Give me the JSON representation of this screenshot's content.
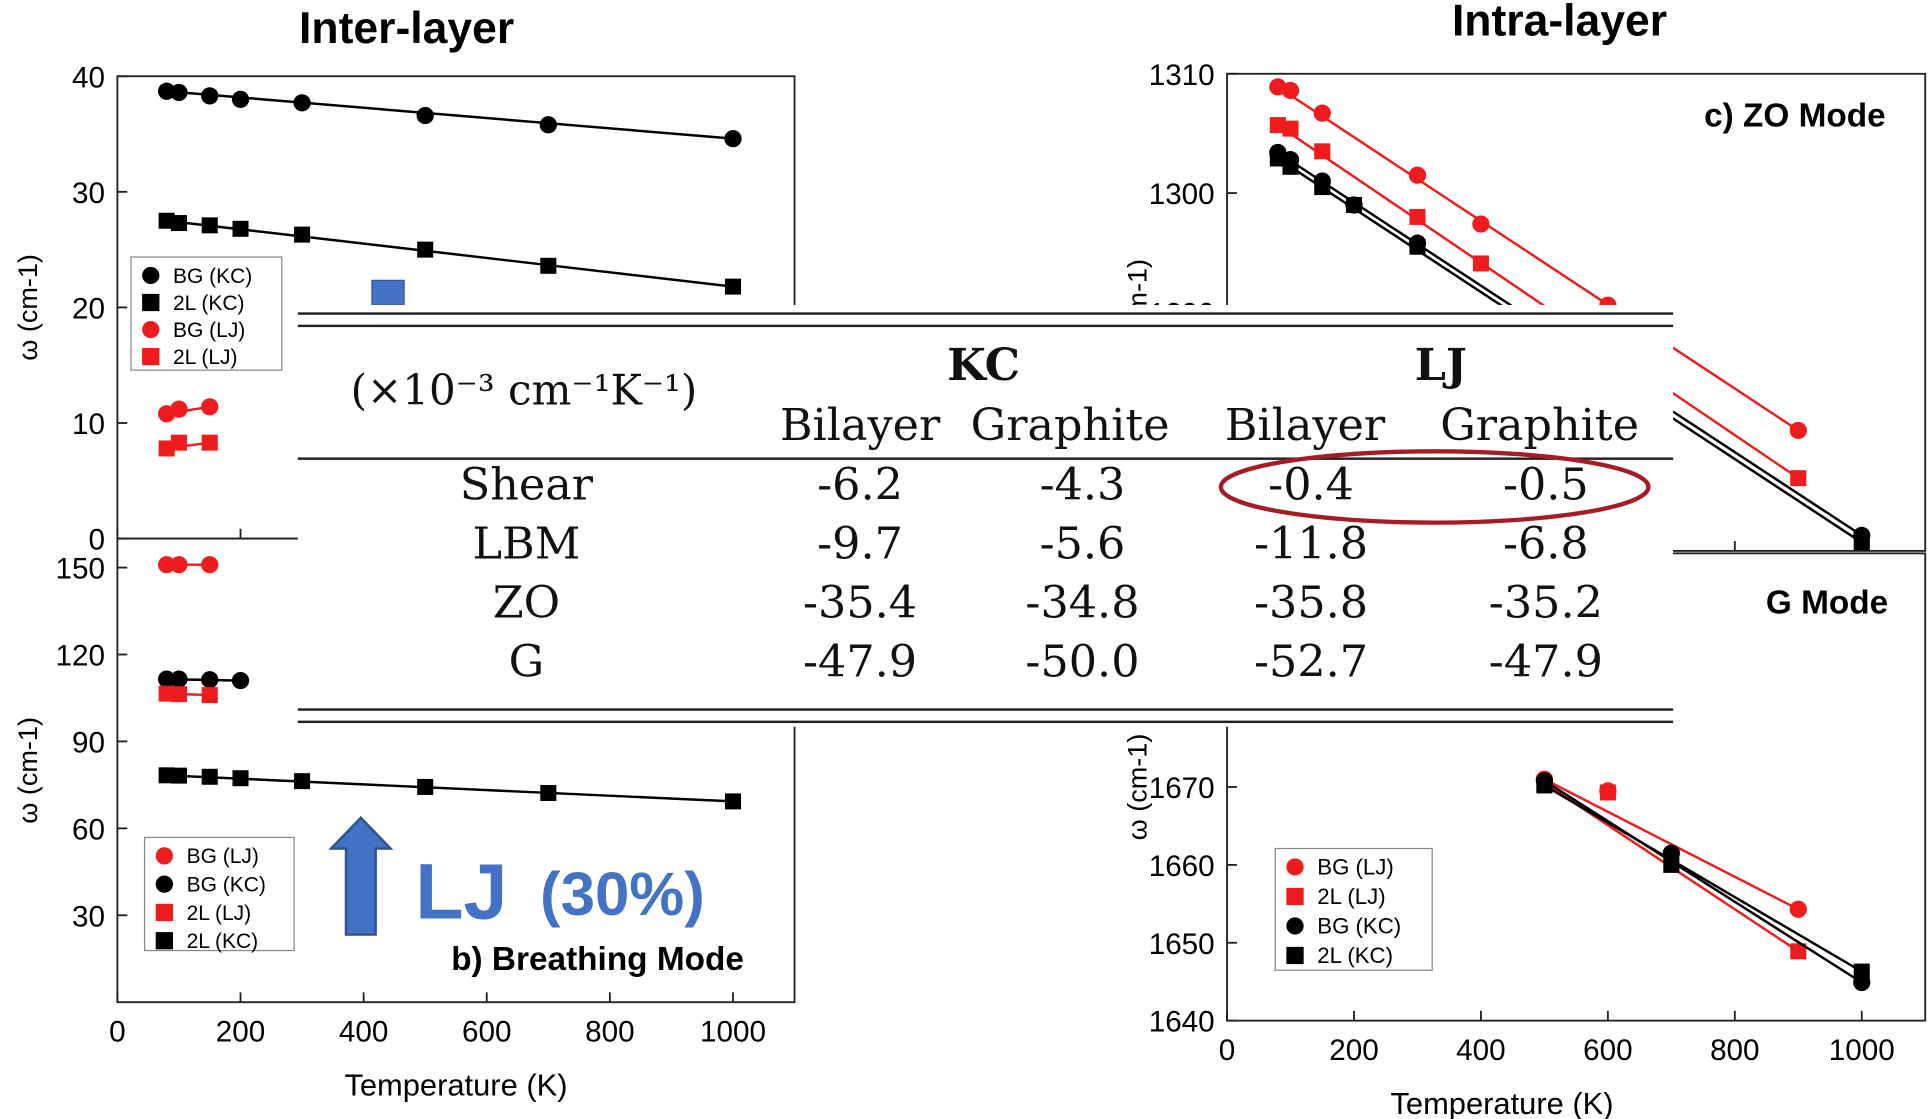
{
  "headings": {
    "left": "Inter-layer",
    "right": "Intra-layer"
  },
  "annotation": {
    "big": "LJ",
    "pct": "(30%)"
  },
  "colors": {
    "kc": "#000000",
    "lj": "#ee1c1c",
    "accent": "#4472C4",
    "oval": "#a51c24"
  },
  "table": {
    "unit": "(×10⁻³ cm⁻¹K⁻¹)",
    "groups": [
      "KC",
      "LJ"
    ],
    "columns": [
      "Bilayer",
      "Graphite",
      "Bilayer",
      "Graphite"
    ],
    "rows": [
      {
        "mode": "Shear",
        "values": [
          "-6.2",
          "-4.3",
          "-0.4",
          "-0.5"
        ]
      },
      {
        "mode": "LBM",
        "values": [
          "-9.7",
          "-5.6",
          "-11.8",
          "-6.8"
        ]
      },
      {
        "mode": "ZO",
        "values": [
          "-35.4",
          "-34.8",
          "-35.8",
          "-35.2"
        ]
      },
      {
        "mode": "G",
        "values": [
          "-47.9",
          "-50.0",
          "-52.7",
          "-47.9"
        ]
      }
    ]
  },
  "chart_data": [
    {
      "type": "scatter",
      "panel": "a",
      "title": "",
      "xlabel": "Temperature (K)",
      "ylabel": "ω (cm-1)",
      "xlim": [
        0,
        1100
      ],
      "ylim": [
        0,
        40
      ],
      "yticks": [
        "0",
        "10",
        "20",
        "30",
        "40"
      ],
      "legend": [
        "BG (KC)",
        "2L (KC)",
        "BG (LJ)",
        "2L (LJ)"
      ],
      "series": [
        {
          "name": "BG (KC)",
          "x": [
            80,
            100,
            150,
            200,
            300,
            500,
            700,
            1000
          ],
          "y": [
            38.7,
            38.6,
            38.3,
            38.0,
            37.7,
            36.6,
            35.8,
            34.6
          ]
        },
        {
          "name": "2L (KC)",
          "x": [
            80,
            100,
            150,
            200,
            300,
            500,
            700,
            1000
          ],
          "y": [
            27.5,
            27.3,
            27.1,
            26.8,
            26.3,
            25.0,
            23.6,
            21.8
          ]
        },
        {
          "name": "BG (LJ)",
          "x": [
            80,
            100,
            150
          ],
          "y": [
            10.8,
            11.2,
            11.4
          ]
        },
        {
          "name": "2L (LJ)",
          "x": [
            80,
            100,
            150
          ],
          "y": [
            7.8,
            8.3,
            8.3
          ]
        }
      ]
    },
    {
      "type": "scatter",
      "panel": "b",
      "title": "b) Breathing Mode",
      "xlabel": "Temperature (K)",
      "ylabel": "ω (cm-1)",
      "xlim": [
        0,
        1100
      ],
      "ylim": [
        0,
        160
      ],
      "yticks": [
        "30",
        "60",
        "90",
        "120",
        "150"
      ],
      "xticks": [
        "0",
        "200",
        "400",
        "600",
        "800",
        "1000"
      ],
      "legend": [
        "BG (LJ)",
        "BG (KC)",
        "2L (LJ)",
        "2L (KC)"
      ],
      "series": [
        {
          "name": "BG (LJ)",
          "x": [
            80,
            100,
            150
          ],
          "y": [
            151,
            151,
            151
          ]
        },
        {
          "name": "BG (KC)",
          "x": [
            80,
            100,
            150,
            200
          ],
          "y": [
            111.5,
            111.5,
            111.3,
            111
          ]
        },
        {
          "name": "2L (LJ)",
          "x": [
            80,
            100,
            150
          ],
          "y": [
            106.5,
            106.3,
            106
          ]
        },
        {
          "name": "2L (KC)",
          "x": [
            80,
            100,
            150,
            200,
            300,
            500,
            700,
            1000
          ],
          "y": [
            78.3,
            78.2,
            77.8,
            77.3,
            76.3,
            74.3,
            72.2,
            69.3
          ]
        }
      ]
    },
    {
      "type": "scatter",
      "panel": "c",
      "title": "c) ZO Mode",
      "xlabel": "",
      "ylabel": "ω (cm-1)",
      "xlim": [
        0,
        1100
      ],
      "ylim": [
        1270,
        1310
      ],
      "yticks": [
        "1290",
        "1300",
        "1310"
      ],
      "legend": [],
      "series": [
        {
          "name": "BG (LJ)",
          "x": [
            80,
            100,
            150,
            300,
            400,
            600,
            900
          ],
          "y": [
            1308.9,
            1308.6,
            1306.7,
            1301.5,
            1297.4,
            1290.6,
            1280.1
          ]
        },
        {
          "name": "2L (LJ)",
          "x": [
            80,
            100,
            150,
            300,
            400,
            600,
            900
          ],
          "y": [
            1305.7,
            1305.4,
            1303.5,
            1298.0,
            1294.1,
            1288.1,
            1276.1
          ]
        },
        {
          "name": "BG (KC)",
          "x": [
            80,
            100,
            150,
            200,
            300,
            500,
            1000
          ],
          "y": [
            1303.4,
            1302.8,
            1301.0,
            1299.0,
            1295.8,
            1288.7,
            1271.3
          ]
        },
        {
          "name": "2L (KC)",
          "x": [
            80,
            100,
            150,
            200,
            300,
            500,
            1000
          ],
          "y": [
            1302.9,
            1302.2,
            1300.5,
            1299.0,
            1295.5,
            1288.3,
            1270.7
          ]
        }
      ]
    },
    {
      "type": "scatter",
      "panel": "d",
      "title": "G Mode",
      "xlabel": "Temperature (K)",
      "ylabel": "ω (cm-1)",
      "xlim": [
        0,
        1100
      ],
      "ylim": [
        1640,
        1700
      ],
      "yticks": [
        "1640",
        "1650",
        "1660",
        "1670"
      ],
      "xticks": [
        "0",
        "200",
        "400",
        "600",
        "800",
        "1000"
      ],
      "legend": [
        "BG (LJ)",
        "2L (LJ)",
        "BG (KC)",
        "2L (KC)"
      ],
      "series": [
        {
          "name": "BG (LJ)",
          "x": [
            500,
            600,
            900
          ],
          "y": [
            1671.0,
            1669.5,
            1654.3
          ]
        },
        {
          "name": "2L (LJ)",
          "x": [
            500,
            600,
            900
          ],
          "y": [
            1670.5,
            1669.3,
            1648.9
          ]
        },
        {
          "name": "BG (KC)",
          "x": [
            500,
            700,
            1000
          ],
          "y": [
            1670.8,
            1661.5,
            1644.9
          ]
        },
        {
          "name": "2L (KC)",
          "x": [
            500,
            700,
            1000
          ],
          "y": [
            1670.2,
            1660.0,
            1646.3
          ]
        }
      ]
    }
  ]
}
